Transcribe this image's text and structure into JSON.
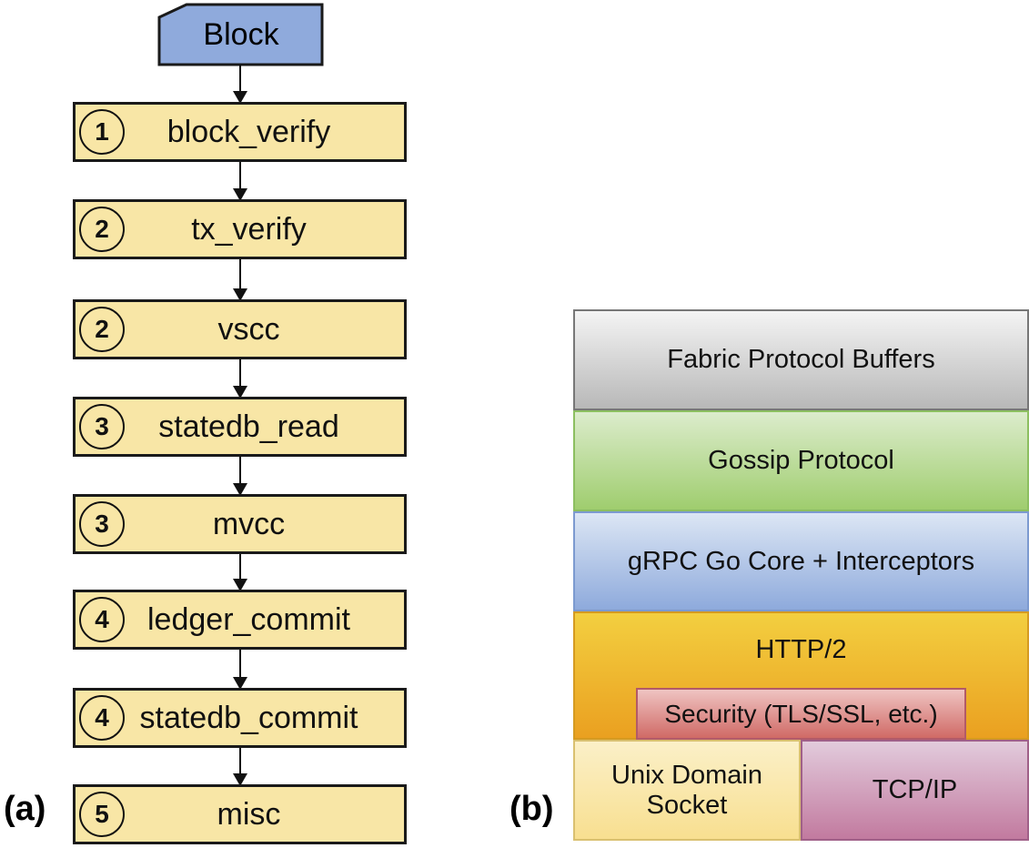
{
  "panel_a": {
    "label": "(a)",
    "input": "Block",
    "steps": [
      {
        "num": "1",
        "name": "block_verify"
      },
      {
        "num": "2",
        "name": "tx_verify"
      },
      {
        "num": "2",
        "name": "vscc"
      },
      {
        "num": "3",
        "name": "statedb_read"
      },
      {
        "num": "3",
        "name": "mvcc"
      },
      {
        "num": "4",
        "name": "ledger_commit"
      },
      {
        "num": "4",
        "name": "statedb_commit"
      },
      {
        "num": "5",
        "name": "misc"
      }
    ]
  },
  "panel_b": {
    "label": "(b)",
    "layers": {
      "fabric": "Fabric Protocol Buffers",
      "gossip": "Gossip Protocol",
      "grpc": "gRPC Go Core + Interceptors",
      "http2": "HTTP/2",
      "security": "Security (TLS/SSL, etc.)",
      "unix": "Unix Domain Socket",
      "tcp": "TCP/IP"
    }
  },
  "colors": {
    "block": "#8faadc",
    "step": "#f8e6a6",
    "fabric": "#c8c8c8",
    "gossip": "#b5d88f",
    "grpc": "#9ab5e0",
    "http2": "#eeb22e",
    "security": "#e08a85",
    "unix": "#f9e8a8",
    "tcp": "#c68bb0"
  }
}
